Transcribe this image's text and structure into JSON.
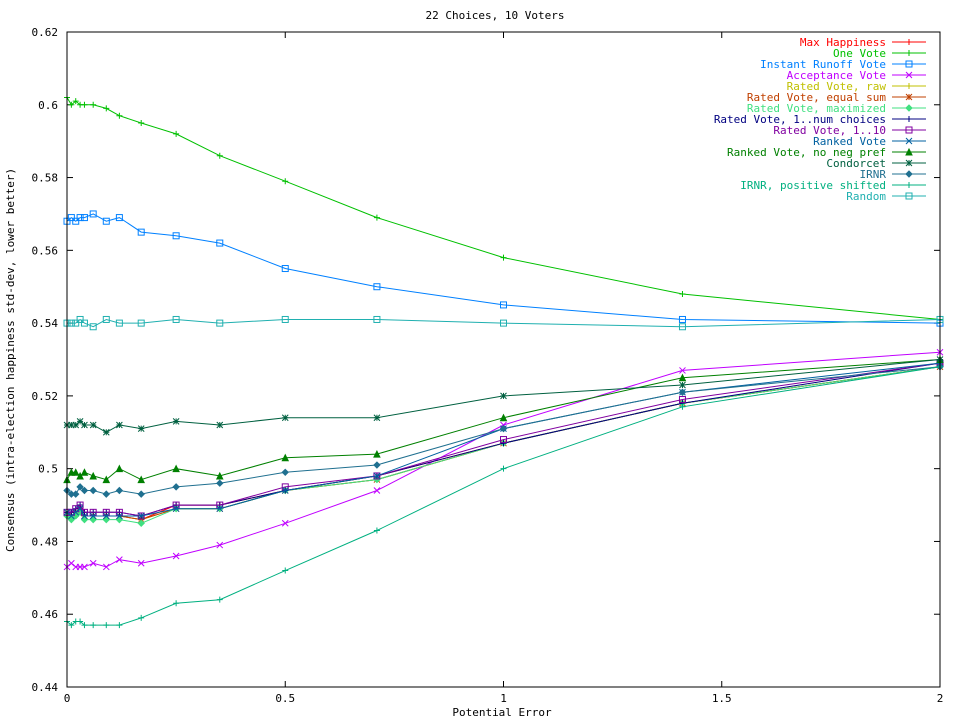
{
  "chart_data": {
    "type": "line",
    "title": "22 Choices, 10 Voters",
    "xlabel": "Potential Error",
    "ylabel": "Consensus (intra-election happiness std-dev, lower better)",
    "xlim": [
      0,
      2
    ],
    "ylim": [
      0.44,
      0.62
    ],
    "x_ticks": [
      "0",
      "0.5",
      "1",
      "1.5",
      "2"
    ],
    "y_ticks": [
      "0.44",
      "0.46",
      "0.48",
      "0.5",
      "0.52",
      "0.54",
      "0.56",
      "0.58",
      "0.6",
      "0.62"
    ],
    "legend_position": "top-right",
    "x": [
      0,
      0.01,
      0.02,
      0.03,
      0.04,
      0.06,
      0.09,
      0.12,
      0.17,
      0.25,
      0.35,
      0.5,
      0.71,
      1.0,
      1.41,
      2.0
    ],
    "series": [
      {
        "name": "Max Happiness",
        "color": "#ff0000",
        "marker": "plus",
        "values": [
          0.488,
          0.487,
          0.488,
          0.489,
          0.487,
          0.487,
          0.487,
          0.487,
          0.486,
          0.49,
          0.49,
          0.494,
          0.498,
          0.507,
          0.518,
          0.528
        ]
      },
      {
        "name": "One Vote",
        "color": "#00c000",
        "marker": "plus",
        "values": [
          0.602,
          0.6,
          0.601,
          0.6,
          0.6,
          0.6,
          0.599,
          0.597,
          0.595,
          0.592,
          0.586,
          0.579,
          0.569,
          0.558,
          0.548,
          0.541
        ]
      },
      {
        "name": "Instant Runoff Vote",
        "color": "#0080ff",
        "marker": "square",
        "values": [
          0.568,
          0.569,
          0.568,
          0.569,
          0.569,
          0.57,
          0.568,
          0.569,
          0.565,
          0.564,
          0.562,
          0.555,
          0.55,
          0.545,
          0.541,
          0.54
        ]
      },
      {
        "name": "Acceptance Vote",
        "color": "#c000ff",
        "marker": "x",
        "values": [
          0.473,
          0.474,
          0.473,
          0.473,
          0.473,
          0.474,
          0.473,
          0.475,
          0.474,
          0.476,
          0.479,
          0.485,
          0.494,
          0.512,
          0.527,
          0.532
        ]
      },
      {
        "name": "Rated Vote, raw",
        "color": "#c0c000",
        "marker": "plus",
        "values": [
          0.487,
          0.487,
          0.487,
          0.488,
          0.487,
          0.487,
          0.487,
          0.487,
          0.486,
          0.489,
          0.489,
          0.494,
          0.497,
          0.507,
          0.518,
          0.528
        ]
      },
      {
        "name": "Rated Vote, equal sum",
        "color": "#c04000",
        "marker": "star",
        "values": [
          0.488,
          0.487,
          0.488,
          0.489,
          0.487,
          0.487,
          0.487,
          0.487,
          0.486,
          0.489,
          0.489,
          0.494,
          0.497,
          0.507,
          0.518,
          0.528
        ]
      },
      {
        "name": "Rated Vote, maximized",
        "color": "#40e080",
        "marker": "diamond",
        "values": [
          0.487,
          0.486,
          0.487,
          0.488,
          0.486,
          0.486,
          0.486,
          0.486,
          0.485,
          0.489,
          0.489,
          0.494,
          0.497,
          0.507,
          0.518,
          0.528
        ]
      },
      {
        "name": "Rated Vote, 1..num choices",
        "color": "#000080",
        "marker": "plus",
        "values": [
          0.488,
          0.488,
          0.489,
          0.49,
          0.488,
          0.488,
          0.488,
          0.488,
          0.487,
          0.49,
          0.49,
          0.494,
          0.498,
          0.507,
          0.518,
          0.529
        ]
      },
      {
        "name": "Rated Vote, 1..10",
        "color": "#8000a0",
        "marker": "square",
        "values": [
          0.488,
          0.488,
          0.489,
          0.49,
          0.488,
          0.488,
          0.488,
          0.488,
          0.487,
          0.49,
          0.49,
          0.495,
          0.498,
          0.508,
          0.519,
          0.529
        ]
      },
      {
        "name": "Ranked Vote",
        "color": "#0060a0",
        "marker": "x",
        "values": [
          0.488,
          0.487,
          0.488,
          0.489,
          0.487,
          0.487,
          0.487,
          0.487,
          0.487,
          0.489,
          0.489,
          0.494,
          0.498,
          0.511,
          0.521,
          0.529
        ]
      },
      {
        "name": "Ranked Vote, no neg pref",
        "color": "#008000",
        "marker": "triangle",
        "values": [
          0.497,
          0.499,
          0.499,
          0.498,
          0.499,
          0.498,
          0.497,
          0.5,
          0.497,
          0.5,
          0.498,
          0.503,
          0.504,
          0.514,
          0.525,
          0.53
        ]
      },
      {
        "name": "Condorcet",
        "color": "#006040",
        "marker": "star",
        "values": [
          0.512,
          0.512,
          0.512,
          0.513,
          0.512,
          0.512,
          0.51,
          0.512,
          0.511,
          0.513,
          0.512,
          0.514,
          0.514,
          0.52,
          0.523,
          0.53
        ]
      },
      {
        "name": "IRNR",
        "color": "#207090",
        "marker": "diamond",
        "values": [
          0.494,
          0.493,
          0.493,
          0.495,
          0.494,
          0.494,
          0.493,
          0.494,
          0.493,
          0.495,
          0.496,
          0.499,
          0.501,
          0.511,
          0.521,
          0.528
        ]
      },
      {
        "name": "IRNR, positive shifted",
        "color": "#00b080",
        "marker": "plus",
        "values": [
          0.458,
          0.457,
          0.458,
          0.458,
          0.457,
          0.457,
          0.457,
          0.457,
          0.459,
          0.463,
          0.464,
          0.472,
          0.483,
          0.5,
          0.517,
          0.528
        ]
      },
      {
        "name": "Random",
        "color": "#20b0b0",
        "marker": "square",
        "values": [
          0.54,
          0.54,
          0.54,
          0.541,
          0.54,
          0.539,
          0.541,
          0.54,
          0.54,
          0.541,
          0.54,
          0.541,
          0.541,
          0.54,
          0.539,
          0.541
        ]
      }
    ]
  }
}
